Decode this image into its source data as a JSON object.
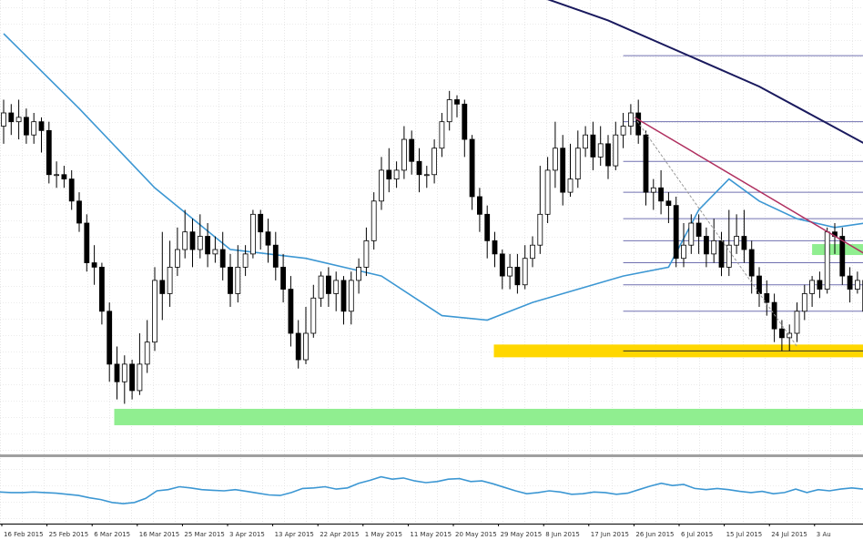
{
  "chart_data": {
    "type": "candlestick",
    "title": "",
    "xlabel": "",
    "ylabel": "",
    "grid": true,
    "x_tick_labels": [
      "16 Feb 2015",
      "25 Feb 2015",
      "6 Mar 2015",
      "16 Mar 2015",
      "25 Mar 2015",
      "3 Apr 2015",
      "13 Apr 2015",
      "22 Apr 2015",
      "1 May 2015",
      "11 May 2015",
      "20 May 2015",
      "29 May 2015",
      "8 Jun 2015",
      "17 Jun 2015",
      "26 Jun 2015",
      "6 Jul 2015",
      "15 Jul 2015",
      "24 Jul 2015",
      "3 Au"
    ],
    "price_ylim": [
      0,
      100
    ],
    "candles": [
      [
        72,
        75,
        68,
        78
      ],
      [
        75,
        73,
        70,
        77
      ],
      [
        73,
        74,
        69,
        78
      ],
      [
        74,
        70,
        68,
        76
      ],
      [
        70,
        73,
        68,
        75
      ],
      [
        73,
        71,
        66,
        74
      ],
      [
        71,
        61,
        59,
        73
      ],
      [
        61,
        61,
        58,
        64
      ],
      [
        61,
        60,
        58,
        63
      ],
      [
        60,
        55,
        53,
        62
      ],
      [
        55,
        50,
        48,
        57
      ],
      [
        50,
        41,
        39,
        52
      ],
      [
        41,
        40,
        36,
        45
      ],
      [
        40,
        30,
        27,
        41
      ],
      [
        30,
        18,
        14,
        32
      ],
      [
        18,
        14,
        10,
        22
      ],
      [
        14,
        18,
        9,
        20
      ],
      [
        18,
        12,
        10,
        19
      ],
      [
        12,
        18,
        11,
        25
      ],
      [
        18,
        23,
        16,
        28
      ],
      [
        23,
        37,
        21,
        40
      ],
      [
        37,
        34,
        28,
        48
      ],
      [
        34,
        40,
        31,
        46
      ],
      [
        40,
        44,
        38,
        49
      ],
      [
        44,
        48,
        42,
        53
      ],
      [
        48,
        44,
        40,
        51
      ],
      [
        44,
        47,
        42,
        52
      ],
      [
        47,
        43,
        40,
        50
      ],
      [
        43,
        44,
        41,
        47
      ],
      [
        44,
        40,
        37,
        48
      ],
      [
        40,
        34,
        31,
        43
      ],
      [
        34,
        40,
        32,
        45
      ],
      [
        40,
        43,
        38,
        45
      ],
      [
        43,
        52,
        42,
        53
      ],
      [
        52,
        48,
        44,
        53
      ],
      [
        48,
        45,
        41,
        51
      ],
      [
        45,
        40,
        37,
        48
      ],
      [
        40,
        35,
        32,
        43
      ],
      [
        35,
        25,
        22,
        38
      ],
      [
        25,
        19,
        17,
        28
      ],
      [
        19,
        25,
        18,
        31
      ],
      [
        25,
        33,
        24,
        36
      ],
      [
        33,
        38,
        31,
        39
      ],
      [
        38,
        34,
        31,
        40
      ],
      [
        34,
        37,
        30,
        39
      ],
      [
        37,
        30,
        27,
        38
      ],
      [
        30,
        37,
        27,
        39
      ],
      [
        37,
        40,
        34,
        42
      ],
      [
        40,
        46,
        38,
        49
      ],
      [
        46,
        55,
        44,
        57
      ],
      [
        55,
        62,
        53,
        65
      ],
      [
        62,
        60,
        57,
        67
      ],
      [
        60,
        62,
        58,
        64
      ],
      [
        62,
        69,
        60,
        72
      ],
      [
        69,
        64,
        61,
        71
      ],
      [
        64,
        61,
        57,
        67
      ],
      [
        61,
        61,
        58,
        63
      ],
      [
        61,
        67,
        59,
        69
      ],
      [
        67,
        73,
        65,
        75
      ],
      [
        73,
        78,
        71,
        80
      ],
      [
        78,
        77,
        74,
        79
      ],
      [
        77,
        69,
        65,
        78
      ],
      [
        69,
        56,
        53,
        70
      ],
      [
        56,
        52,
        48,
        58
      ],
      [
        52,
        46,
        42,
        54
      ],
      [
        46,
        43,
        40,
        48
      ],
      [
        43,
        38,
        35,
        44
      ],
      [
        38,
        40,
        35,
        43
      ],
      [
        40,
        36,
        34,
        43
      ],
      [
        36,
        42,
        35,
        45
      ],
      [
        42,
        45,
        40,
        47
      ],
      [
        45,
        52,
        43,
        63
      ],
      [
        52,
        62,
        50,
        65
      ],
      [
        62,
        67,
        58,
        73
      ],
      [
        67,
        57,
        54,
        70
      ],
      [
        57,
        60,
        56,
        68
      ],
      [
        60,
        67,
        58,
        71
      ],
      [
        67,
        70,
        65,
        72
      ],
      [
        70,
        65,
        62,
        73
      ],
      [
        65,
        68,
        63,
        72
      ],
      [
        68,
        63,
        60,
        70
      ],
      [
        63,
        70,
        62,
        73
      ],
      [
        70,
        72,
        67,
        75
      ],
      [
        72,
        75,
        70,
        77
      ],
      [
        75,
        70,
        68,
        78
      ],
      [
        70,
        57,
        54,
        71
      ],
      [
        57,
        58,
        53,
        60
      ],
      [
        58,
        55,
        52,
        62
      ],
      [
        55,
        54,
        50,
        57
      ],
      [
        54,
        42,
        40,
        56
      ],
      [
        42,
        45,
        40,
        50
      ],
      [
        45,
        50,
        43,
        52
      ],
      [
        50,
        47,
        43,
        52
      ],
      [
        47,
        43,
        40,
        49
      ],
      [
        43,
        46,
        41,
        51
      ],
      [
        46,
        40,
        38,
        48
      ],
      [
        40,
        45,
        38,
        53
      ],
      [
        45,
        47,
        43,
        52
      ],
      [
        47,
        44,
        41,
        53
      ],
      [
        44,
        38,
        34,
        46
      ],
      [
        38,
        34,
        31,
        40
      ],
      [
        34,
        32,
        29,
        37
      ],
      [
        32,
        26,
        23,
        34
      ],
      [
        26,
        24,
        21,
        28
      ],
      [
        24,
        25,
        21,
        27
      ],
      [
        25,
        30,
        23,
        32
      ],
      [
        30,
        34,
        28,
        36
      ],
      [
        34,
        37,
        31,
        38
      ],
      [
        37,
        35,
        33,
        39
      ],
      [
        35,
        48,
        34,
        49
      ],
      [
        48,
        47,
        43,
        50
      ],
      [
        47,
        38,
        36,
        49
      ],
      [
        38,
        35,
        32,
        40
      ],
      [
        35,
        37,
        34,
        39
      ],
      [
        37,
        30,
        27,
        40
      ]
    ],
    "moving_average_fast": [
      [
        0,
        93
      ],
      [
        10,
        76
      ],
      [
        20,
        58
      ],
      [
        30,
        44
      ],
      [
        40,
        42
      ],
      [
        50,
        38
      ],
      [
        58,
        29
      ],
      [
        64,
        28
      ],
      [
        70,
        32
      ],
      [
        76,
        35
      ],
      [
        82,
        38
      ],
      [
        88,
        40
      ],
      [
        92,
        53
      ],
      [
        96,
        60
      ],
      [
        100,
        55
      ],
      [
        105,
        51
      ],
      [
        110,
        49
      ],
      [
        114,
        50
      ]
    ],
    "moving_average_slow": [
      [
        0,
        145
      ],
      [
        20,
        129
      ],
      [
        40,
        118
      ],
      [
        60,
        108
      ],
      [
        80,
        96
      ],
      [
        100,
        81
      ],
      [
        114,
        68
      ]
    ],
    "indicator_panel": {
      "ylim": [
        0,
        100
      ],
      "values": [
        48,
        47,
        47,
        48,
        47,
        46,
        44,
        42,
        38,
        35,
        30,
        28,
        30,
        37,
        50,
        52,
        57,
        55,
        52,
        51,
        50,
        52,
        49,
        46,
        43,
        42,
        47,
        54,
        55,
        57,
        53,
        55,
        63,
        68,
        74,
        70,
        72,
        67,
        64,
        66,
        70,
        71,
        66,
        67,
        62,
        56,
        50,
        45,
        47,
        50,
        48,
        44,
        45,
        48,
        47,
        44,
        46,
        52,
        58,
        63,
        59,
        61,
        54,
        52,
        54,
        52,
        49,
        47,
        49,
        45,
        47,
        53,
        47,
        52,
        50,
        53,
        55,
        53
      ]
    },
    "horizontal_levels": [
      {
        "name": "green zone lower",
        "value": 6,
        "color": "#90ee90"
      },
      {
        "name": "yellow zone",
        "value": 21,
        "color": "#ffd700"
      },
      {
        "name": "green zone upper",
        "value": 44,
        "color": "#90ee90"
      }
    ],
    "fib_levels": [
      21,
      30,
      36,
      41,
      46,
      51,
      57,
      64,
      73,
      88,
      108
    ],
    "trendlines": [
      {
        "name": "red trend",
        "from": [
          83.5,
          74
        ],
        "to": [
          114,
          43
        ],
        "color": "#b03060"
      },
      {
        "name": "dashed trend",
        "from": [
          83.5,
          74
        ],
        "to": [
          105,
          22
        ],
        "color": "#999999"
      }
    ],
    "colors": {
      "background": "#ffffff",
      "grid": "#d8d8d8",
      "bull_candle": "#ffffff",
      "bear_candle": "#000000",
      "fast_ma": "#3c97d3",
      "slow_ma": "#1a1a5e",
      "indicator": "#3c97d3"
    }
  }
}
